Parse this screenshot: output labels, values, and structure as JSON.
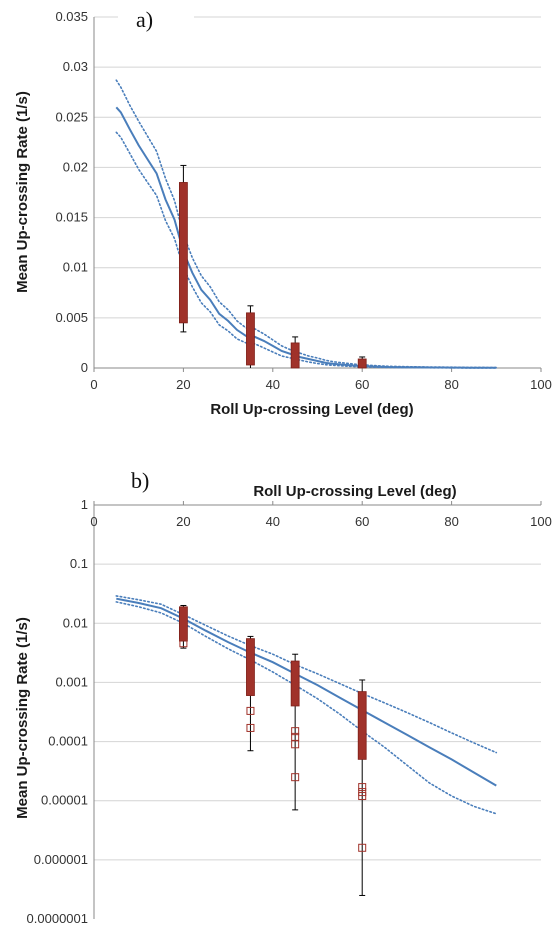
{
  "chart_data": [
    {
      "type": "line",
      "panel_label": "a)",
      "xlabel": "Roll Up-crossing Level (deg)",
      "ylabel": "Mean Up-crossing Rate (1/s)",
      "xlim": [
        0,
        100
      ],
      "ylim": [
        0,
        0.035
      ],
      "x_ticks": [
        "0",
        "20",
        "40",
        "60",
        "80",
        "100"
      ],
      "y_ticks": [
        "0",
        "0.005",
        "0.01",
        "0.015",
        "0.02",
        "0.025",
        "0.03",
        "0.035"
      ],
      "x_axis_position": "bottom",
      "y_scale": "linear",
      "grid": "horizontal",
      "colors": {
        "curve": "#4a7ebb",
        "samples": "#a0322a",
        "whisker": "#000000"
      },
      "series": [
        {
          "style": "solid",
          "x": [
            5,
            6,
            8,
            10,
            12,
            14,
            16,
            18,
            20,
            22,
            24,
            26,
            28,
            30,
            32,
            34,
            36,
            38,
            40,
            42,
            44,
            46,
            48,
            50,
            52,
            54,
            56,
            58,
            60,
            62,
            64,
            66,
            68,
            70,
            72,
            74,
            76,
            78,
            80,
            82,
            84,
            86,
            88,
            90
          ],
          "y": [
            0.026,
            0.0255,
            0.0238,
            0.0222,
            0.0208,
            0.0194,
            0.0168,
            0.0148,
            0.0116,
            0.0095,
            0.0078,
            0.0068,
            0.0054,
            0.0047,
            0.0038,
            0.0032,
            0.0031,
            0.0027,
            0.0022,
            0.0017,
            0.0014,
            0.0011,
            0.0009,
            0.0007,
            0.0005,
            0.0004,
            0.00032,
            0.00025,
            0.0002,
            0.00016,
            0.00013,
            0.0001,
            9e-05,
            8e-05,
            7e-05,
            6e-05,
            5e-05,
            5e-05,
            4e-05,
            4e-05,
            3e-05,
            3e-05,
            2e-05,
            2e-05
          ]
        },
        {
          "style": "dotted",
          "x": [
            5,
            6,
            8,
            10,
            12,
            14,
            16,
            18,
            20,
            22,
            24,
            26,
            28,
            30,
            32,
            34,
            36,
            38,
            40,
            42,
            44,
            46,
            48,
            50,
            52,
            54,
            56,
            58,
            60,
            62,
            64,
            66,
            68,
            70,
            72,
            74,
            76,
            78,
            80,
            82,
            84,
            86,
            88,
            90
          ],
          "y": [
            0.0287,
            0.028,
            0.0262,
            0.0246,
            0.0231,
            0.0216,
            0.0189,
            0.0167,
            0.0133,
            0.011,
            0.0092,
            0.0081,
            0.0066,
            0.0058,
            0.0047,
            0.004,
            0.0039,
            0.0034,
            0.0028,
            0.0022,
            0.0018,
            0.0015,
            0.0012,
            0.001,
            0.00075,
            0.0006,
            0.0005,
            0.0004,
            0.00032,
            0.00026,
            0.00021,
            0.00017,
            0.00015,
            0.00013,
            0.00012,
            0.0001,
            9e-05,
            9e-05,
            8e-05,
            7e-05,
            6e-05,
            6e-05,
            5e-05,
            4e-05
          ]
        },
        {
          "style": "dotted",
          "x": [
            5,
            6,
            8,
            10,
            12,
            14,
            16,
            18,
            20,
            22,
            24,
            26,
            28,
            30,
            32,
            34,
            36,
            38,
            40,
            42,
            44,
            46,
            48,
            50,
            52,
            54,
            56,
            58,
            60,
            62,
            64,
            66,
            68,
            70,
            72,
            74,
            76,
            78,
            80,
            82,
            84,
            86,
            88,
            90
          ],
          "y": [
            0.0235,
            0.023,
            0.0214,
            0.0198,
            0.0185,
            0.0172,
            0.0147,
            0.0129,
            0.01,
            0.0081,
            0.0065,
            0.0056,
            0.0043,
            0.0037,
            0.0029,
            0.0025,
            0.0024,
            0.002,
            0.0016,
            0.0012,
            0.001,
            0.0008,
            0.0006,
            0.00045,
            0.00032,
            0.00025,
            0.0002,
            0.00015,
            0.00011,
            9e-05,
            7e-05,
            5e-05,
            4e-05,
            4e-05,
            3e-05,
            3e-05,
            2e-05,
            2e-05,
            2e-05,
            1e-05,
            1e-05,
            1e-05,
            1e-05,
            1e-05
          ]
        }
      ],
      "sample_bars": [
        {
          "x": 20,
          "low": 0.0045,
          "high": 0.0185,
          "whisker_low": 0.0036,
          "whisker_high": 0.0202
        },
        {
          "x": 35,
          "low": 0.0003,
          "high": 0.0055,
          "whisker_low": 0.0,
          "whisker_high": 0.0062
        },
        {
          "x": 45,
          "low": 0.0,
          "high": 0.0025,
          "whisker_low": 0.0,
          "whisker_high": 0.0031
        },
        {
          "x": 60,
          "low": 0.0,
          "high": 0.0009,
          "whisker_low": 0.0,
          "whisker_high": 0.0011
        }
      ]
    },
    {
      "type": "line",
      "panel_label": "b)",
      "xlabel": "Roll Up-crossing Level (deg)",
      "ylabel": "Mean Up-crossing Rate (1/s)",
      "xlim": [
        0,
        100
      ],
      "ylim": [
        1e-07,
        1
      ],
      "x_ticks": [
        "0",
        "20",
        "40",
        "60",
        "80",
        "100"
      ],
      "y_ticks": [
        "0.0000001",
        "0.000001",
        "0.00001",
        "0.0001",
        "0.001",
        "0.01",
        "0.1",
        "1"
      ],
      "x_axis_position": "top",
      "y_scale": "log",
      "grid": "horizontal",
      "colors": {
        "curve": "#4a7ebb",
        "samples": "#a0322a",
        "whisker": "#000000"
      },
      "series": [
        {
          "style": "solid",
          "x": [
            5,
            10,
            15,
            20,
            25,
            30,
            35,
            40,
            45,
            50,
            55,
            60,
            65,
            70,
            75,
            80,
            85,
            90
          ],
          "y": [
            0.026,
            0.022,
            0.018,
            0.012,
            0.0075,
            0.0048,
            0.0032,
            0.0022,
            0.0014,
            0.0009,
            0.00055,
            0.00034,
            0.00021,
            0.00013,
            8e-05,
            5e-05,
            3e-05,
            1.8e-05
          ]
        },
        {
          "style": "dotted",
          "x": [
            5,
            10,
            15,
            20,
            25,
            30,
            35,
            40,
            45,
            50,
            55,
            60,
            65,
            70,
            75,
            80,
            85,
            90
          ],
          "y": [
            0.029,
            0.025,
            0.021,
            0.014,
            0.0092,
            0.0061,
            0.0042,
            0.003,
            0.002,
            0.0014,
            0.00095,
            0.00065,
            0.00045,
            0.00031,
            0.00021,
            0.00014,
            9.5e-05,
            6.5e-05
          ]
        },
        {
          "style": "dotted",
          "x": [
            5,
            10,
            15,
            20,
            25,
            30,
            35,
            40,
            45,
            50,
            55,
            60,
            65,
            70,
            75,
            80,
            85,
            90
          ],
          "y": [
            0.023,
            0.019,
            0.015,
            0.01,
            0.006,
            0.0037,
            0.0024,
            0.0015,
            0.0009,
            0.00053,
            0.00029,
            0.00015,
            8e-05,
            4e-05,
            2e-05,
            1.2e-05,
            8e-06,
            6e-06
          ]
        }
      ],
      "sample_bars": [
        {
          "x": 20,
          "low": 0.005,
          "high": 0.019,
          "whisker_low": 0.0038,
          "whisker_high": 0.02
        },
        {
          "x": 35,
          "low": 0.0006,
          "high": 0.0055,
          "whisker_low": 7e-05,
          "whisker_high": 0.006
        },
        {
          "x": 45,
          "low": 0.0004,
          "high": 0.0023,
          "whisker_low": 7e-06,
          "whisker_high": 0.003
        },
        {
          "x": 60,
          "low": 5e-05,
          "high": 0.0007,
          "whisker_low": 2.5e-07,
          "whisker_high": 0.0011
        }
      ],
      "outlier_markers": [
        {
          "x": 20,
          "y": 0.0046
        },
        {
          "x": 35,
          "y": 0.00033
        },
        {
          "x": 35,
          "y": 0.00017
        },
        {
          "x": 45,
          "y": 0.00015
        },
        {
          "x": 45,
          "y": 0.00012
        },
        {
          "x": 45,
          "y": 9e-05
        },
        {
          "x": 45,
          "y": 2.5e-05
        },
        {
          "x": 60,
          "y": 1.7e-05
        },
        {
          "x": 60,
          "y": 1.4e-05
        },
        {
          "x": 60,
          "y": 1.2e-05
        },
        {
          "x": 60,
          "y": 1.6e-06
        }
      ]
    }
  ]
}
